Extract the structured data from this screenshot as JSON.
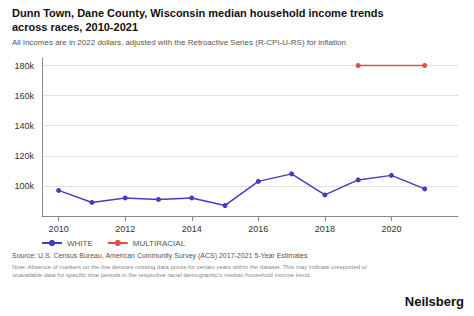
{
  "chart_data": {
    "type": "line",
    "title": "Dunn Town, Dane County, Wisconsin median household income trends\nacross races, 2010-2021",
    "subtitle": "All incomes are in 2022 dollars, adjusted with the Retroactive Series (R-CPI-U-RS) for inflation",
    "source": "Source: U.S. Census Bureau, American Community Survey (ACS) 2017-2021 5-Year Estimates",
    "note": "Note: Absence of markers on the line denotes missing data points for certain years within the dataset. This may indicate unreported or unavailable data for specific time periods in the respective racial demographic's median household income trend.",
    "annotations": [
      "Neilsberg"
    ],
    "series": [
      {
        "name": "WHITE",
        "color": "#4040c0",
        "x": [
          2010,
          2011,
          2012,
          2013,
          2014,
          2015,
          2016,
          2017,
          2018,
          2019,
          2020,
          2021
        ],
        "values": [
          97000,
          89000,
          92000,
          91000,
          92000,
          87000,
          103000,
          108000,
          94000,
          104000,
          107000,
          98000
        ]
      },
      {
        "name": "MULTIRACIAL",
        "color": "#e05050",
        "x": [
          2019,
          2021
        ],
        "values": [
          180000,
          180000
        ]
      }
    ],
    "xlim": [
      2009.5,
      2022
    ],
    "xticks": [
      2010,
      2012,
      2014,
      2016,
      2018,
      2020
    ],
    "ylim": [
      80000,
      185000
    ],
    "yticks": [
      {
        "value": 80000,
        "label": ""
      },
      {
        "value": 100000,
        "label": "100k"
      },
      {
        "value": 120000,
        "label": "120k"
      },
      {
        "value": 140000,
        "label": "140k"
      },
      {
        "value": 160000,
        "label": "160k"
      },
      {
        "value": 180000,
        "label": "180k"
      }
    ],
    "grid": true,
    "legend": "bottom",
    "marker": "circle"
  }
}
